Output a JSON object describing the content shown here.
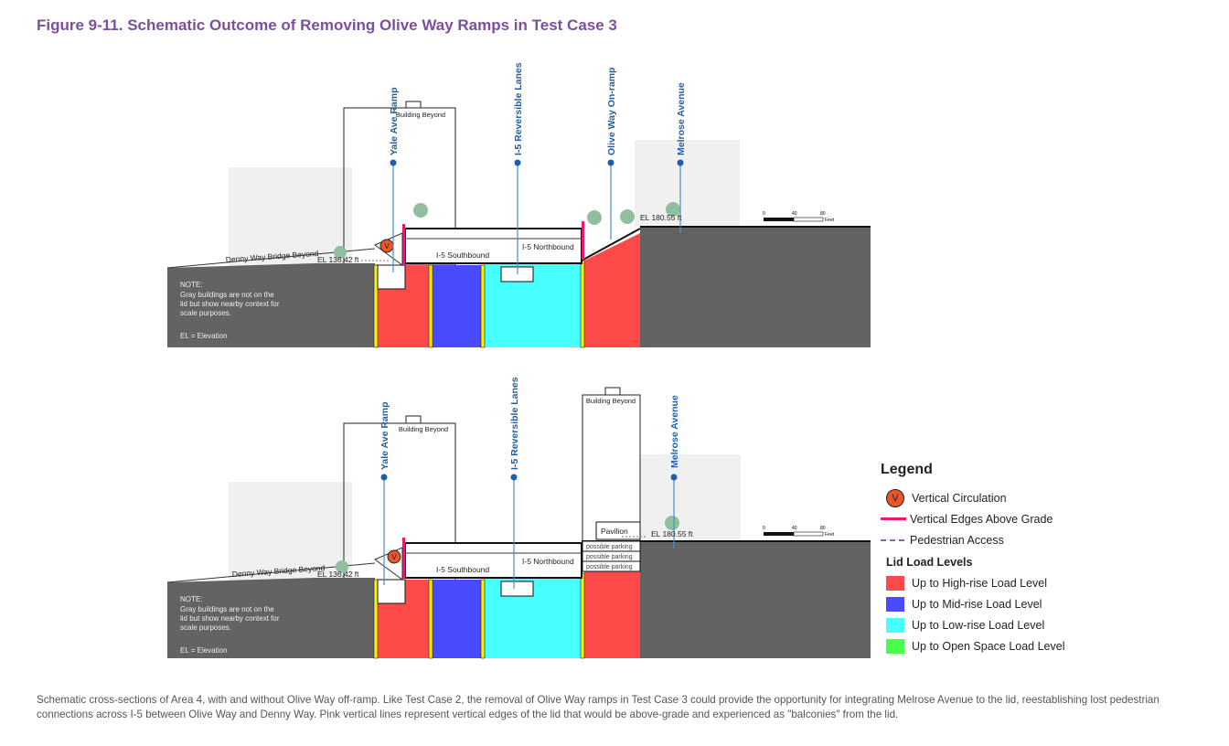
{
  "title": "Figure 9-11. Schematic Outcome of Removing Olive Way Ramps in Test Case 3",
  "top_section": {
    "labels": {
      "yale": "Yale Ave Ramp",
      "i5": "I-5 Reversible Lanes",
      "olive": "Olive Way On-ramp",
      "melrose": "Melrose Avenue"
    },
    "building_beyond": "Building Beyond",
    "southbound": "I-5 Southbound",
    "northbound": "I-5 Northbound",
    "denny": "Denny Way Bridge Beyond",
    "el_left": "EL 136.42 ft",
    "el_right": "EL 180.55 ft",
    "note": [
      "NOTE:",
      "Gray buildings are not on the",
      "lid but show nearby context for",
      "scale purposes."
    ],
    "el_def": "EL = Elevation",
    "scale": [
      "0",
      "40",
      "80",
      "Feet"
    ]
  },
  "bottom_section": {
    "labels": {
      "yale": "Yale Ave Ramp",
      "i5": "I-5 Reversible Lanes",
      "melrose": "Melrose Avenue"
    },
    "building_beyond": "Building Beyond",
    "building_beyond_2": "Building Beyond",
    "pavilion": "Pavilion",
    "parking": [
      "possible parking",
      "possible parking",
      "possible parking"
    ],
    "southbound": "I-5 Southbound",
    "northbound": "I-5 Northbound",
    "denny": "Denny Way Bridge Beyond",
    "el_left": "EL 136.42 ft",
    "el_right": "EL 180.55 ft",
    "note": [
      "NOTE:",
      "Gray buildings are not on the",
      "lid but show nearby context for",
      "scale purposes."
    ],
    "el_def": "EL = Elevation",
    "scale": [
      "0",
      "40",
      "80",
      "Feet"
    ]
  },
  "legend": {
    "title": "Legend",
    "vertical_circulation": "Vertical Circulation",
    "vertical_circulation_symbol": "V",
    "vertical_edges": "Vertical Edges Above Grade",
    "pedestrian": "Pedestrian Access",
    "lid_title": "Lid Load Levels",
    "levels": [
      {
        "label": "Up to High-rise Load Level",
        "color": "#ff4a4a"
      },
      {
        "label": "Up to Mid-rise Load Level",
        "color": "#4a4aff"
      },
      {
        "label": "Up to Low-rise Load Level",
        "color": "#48ffff"
      },
      {
        "label": "Up to Open Space Load Level",
        "color": "#4aff4a"
      }
    ]
  },
  "colors": {
    "ground": "#636363",
    "edge": "#e8196e",
    "yellow": "#ffee00",
    "label_blue": "#1a5fa8",
    "pedestrian": "#8a5cc0",
    "vc": "#e8562a"
  },
  "caption": "Schematic cross-sections of Area 4, with and without Olive Way off-ramp. Like Test Case 2, the removal of Olive Way ramps in Test Case 3 could provide the opportunity for integrating Melrose Avenue to the lid, reestablishing lost pedestrian connections across I-5 between Olive Way and Denny Way. Pink vertical lines represent vertical edges of the lid that would be above-grade and experienced as \"balconies\" from the lid."
}
